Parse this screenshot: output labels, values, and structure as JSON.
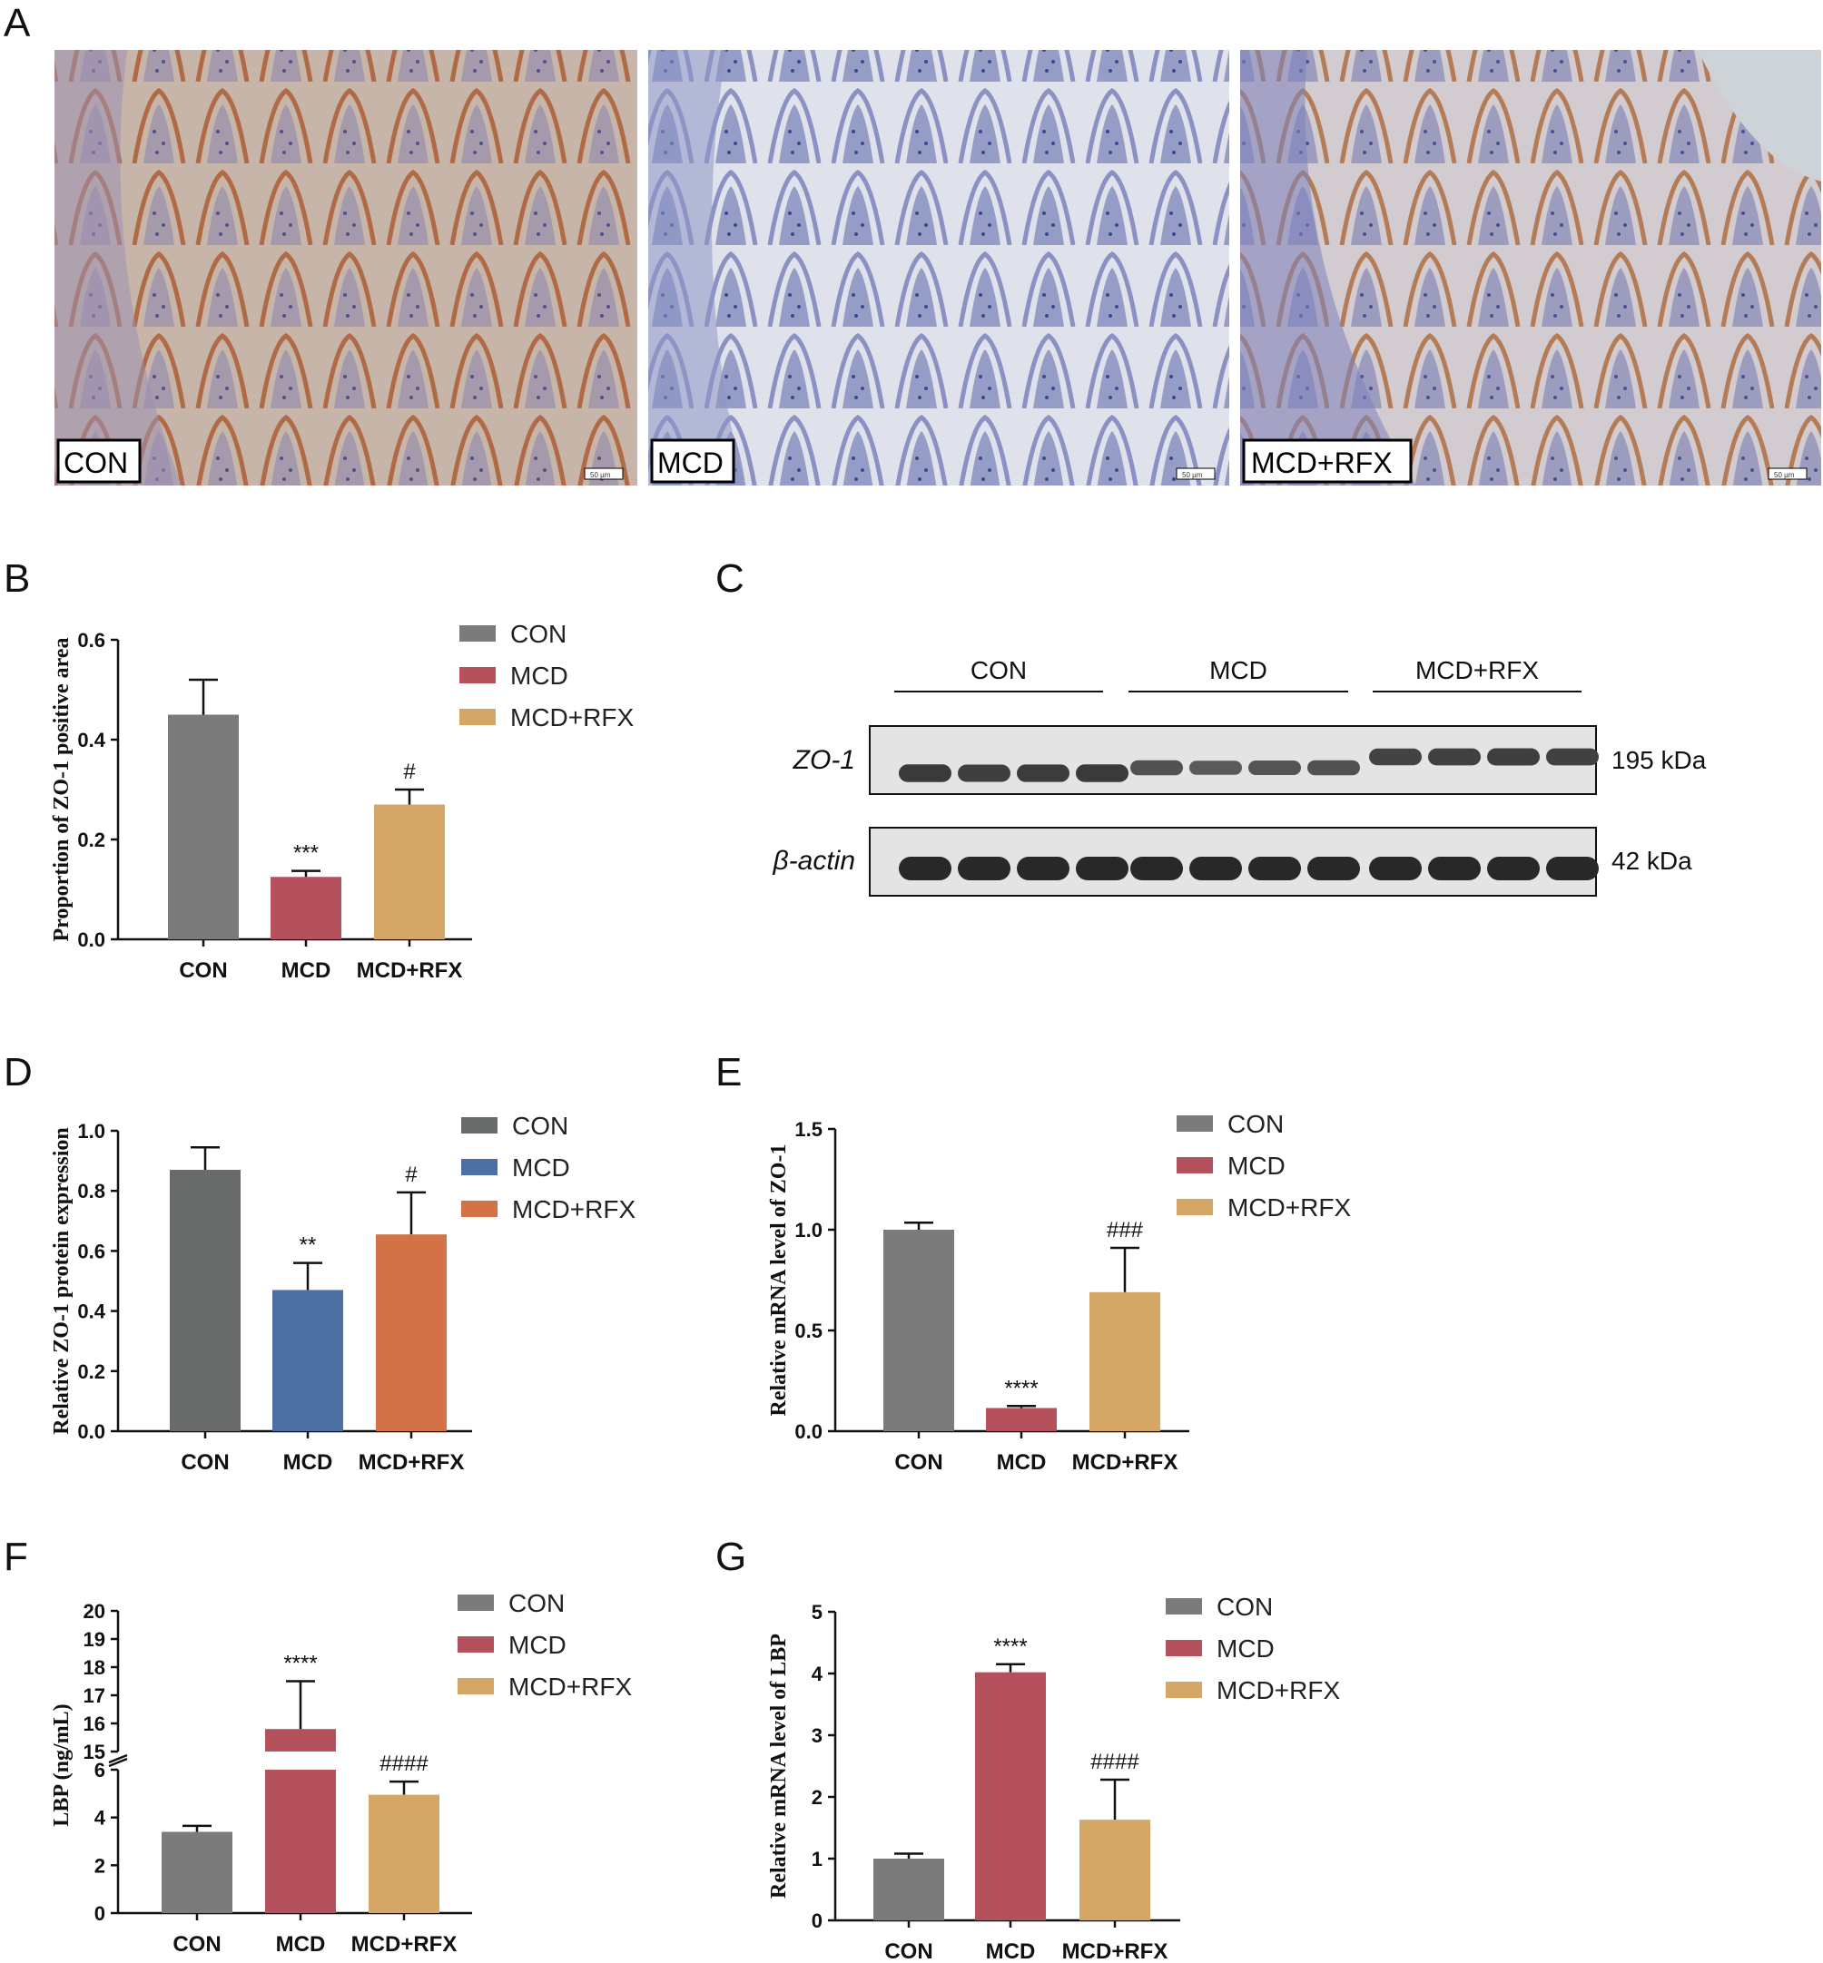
{
  "panel_labels": {
    "A": "A",
    "B": "B",
    "C": "C",
    "D": "D",
    "E": "E",
    "F": "F",
    "G": "G"
  },
  "micrographs": [
    {
      "label": "CON",
      "scale": "50 µm",
      "tint": "#c9b7ab"
    },
    {
      "label": "MCD",
      "scale": "50 µm",
      "tint": "#a9b1cf"
    },
    {
      "label": "MCD+RFX",
      "scale": "50 µm",
      "tint": "#b9aeb6"
    }
  ],
  "western_blot": {
    "groups": [
      "CON",
      "MCD",
      "MCD+RFX"
    ],
    "rows": [
      {
        "protein": "ZO-1",
        "size": "195 kDa",
        "intensity": [
          0.8,
          0.75,
          0.78,
          0.8,
          0.55,
          0.45,
          0.5,
          0.55,
          0.7,
          0.72,
          0.75,
          0.72
        ]
      },
      {
        "protein": "β-actin",
        "size": "42 kDa",
        "intensity": [
          1,
          1,
          1,
          1,
          1,
          1,
          1,
          1,
          1,
          1,
          1,
          1
        ]
      }
    ]
  },
  "chart_data": [
    {
      "id": "B",
      "type": "bar",
      "categories": [
        "CON",
        "MCD",
        "MCD+RFX"
      ],
      "values": [
        0.45,
        0.125,
        0.27
      ],
      "errors": [
        0.07,
        0.012,
        0.03
      ],
      "significance": [
        "",
        "***",
        "#"
      ],
      "ylabel": "Proportion of ZO-1 positive area",
      "ylim": [
        0,
        0.6
      ],
      "yticks": [
        "0.0",
        "0.2",
        "0.4",
        "0.6"
      ],
      "colors": [
        "#7b7b7b",
        "#b5505d",
        "#d4a767"
      ],
      "legend": [
        "CON",
        "MCD",
        "MCD+RFX"
      ],
      "legend_position": "top-right"
    },
    {
      "id": "D",
      "type": "bar",
      "categories": [
        "CON",
        "MCD",
        "MCD+RFX"
      ],
      "values": [
        0.87,
        0.47,
        0.655
      ],
      "errors": [
        0.075,
        0.09,
        0.14
      ],
      "significance": [
        "",
        "**",
        "#"
      ],
      "ylabel": "Relative ZO-1 protein expression",
      "ylim": [
        0,
        1.0
      ],
      "yticks": [
        "0.0",
        "0.2",
        "0.4",
        "0.6",
        "0.8",
        "1.0"
      ],
      "colors": [
        "#686b69",
        "#4e6fa3",
        "#d37147"
      ],
      "legend": [
        "CON",
        "MCD",
        "MCD+RFX"
      ],
      "legend_position": "top-right"
    },
    {
      "id": "E",
      "type": "bar",
      "categories": [
        "CON",
        "MCD",
        "MCD+RFX"
      ],
      "values": [
        1.0,
        0.115,
        0.69
      ],
      "errors": [
        0.035,
        0.01,
        0.22
      ],
      "significance": [
        "",
        "****",
        "###"
      ],
      "ylabel": "Relative mRNA level of ZO-1",
      "ylim": [
        0,
        1.5
      ],
      "yticks": [
        "0.0",
        "0.5",
        "1.0",
        "1.5"
      ],
      "colors": [
        "#7b7b7b",
        "#b5505d",
        "#d4a767"
      ],
      "legend": [
        "CON",
        "MCD",
        "MCD+RFX"
      ],
      "legend_position": "top-right"
    },
    {
      "id": "F",
      "type": "bar",
      "axis_break": [
        6,
        15
      ],
      "categories": [
        "CON",
        "MCD",
        "MCD+RFX"
      ],
      "values": [
        3.4,
        15.8,
        4.95
      ],
      "errors": [
        0.25,
        1.7,
        0.55
      ],
      "significance": [
        "",
        "****",
        "####"
      ],
      "ylabel": "LBP (ng/mL)",
      "yticks_lower": [
        "0",
        "2",
        "4",
        "6"
      ],
      "yticks_upper": [
        "15",
        "16",
        "17",
        "18",
        "19",
        "20"
      ],
      "colors": [
        "#7b7b7b",
        "#b5505d",
        "#d4a767"
      ],
      "legend": [
        "CON",
        "MCD",
        "MCD+RFX"
      ],
      "legend_position": "top-right"
    },
    {
      "id": "G",
      "type": "bar",
      "categories": [
        "CON",
        "MCD",
        "MCD+RFX"
      ],
      "values": [
        1.0,
        4.02,
        1.63
      ],
      "errors": [
        0.08,
        0.13,
        0.65
      ],
      "significance": [
        "",
        "****",
        "####"
      ],
      "ylabel": "Relative mRNA level of LBP",
      "ylim": [
        0,
        5
      ],
      "yticks": [
        "0",
        "1",
        "2",
        "3",
        "4",
        "5"
      ],
      "colors": [
        "#7b7b7b",
        "#b5505d",
        "#d4a767"
      ],
      "legend": [
        "CON",
        "MCD",
        "MCD+RFX"
      ],
      "legend_position": "top-right"
    }
  ]
}
